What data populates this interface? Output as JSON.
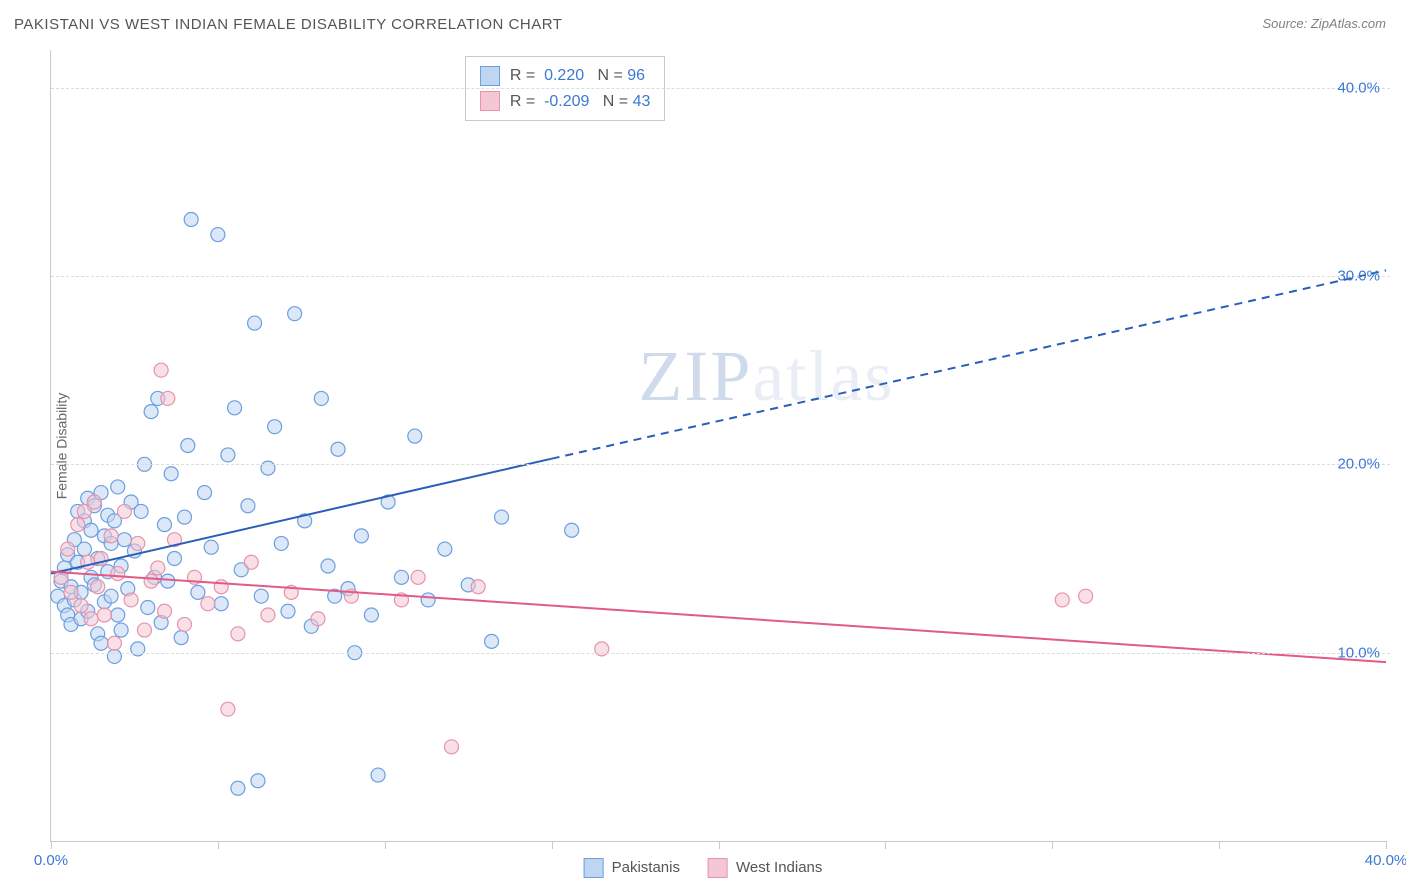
{
  "title": "PAKISTANI VS WEST INDIAN FEMALE DISABILITY CORRELATION CHART",
  "source_prefix": "Source: ",
  "source_link": "ZipAtlas.com",
  "ylabel": "Female Disability",
  "watermark_a": "ZIP",
  "watermark_b": "atlas",
  "chart": {
    "type": "scatter-with-regression",
    "xlim": [
      0,
      40
    ],
    "ylim": [
      0,
      42
    ],
    "background_color": "#ffffff",
    "grid_color": "#dcdcdc",
    "axis_color": "#c9c9c9",
    "tick_color": "#3a78d6",
    "label_color": "#666666",
    "x_ticks": [
      0,
      5,
      10,
      15,
      20,
      25,
      30,
      35,
      40
    ],
    "x_tick_labels": {
      "0": "0.0%",
      "40": "40.0%"
    },
    "y_gridlines": [
      10,
      20,
      30,
      40
    ],
    "y_tick_labels": {
      "10": "10.0%",
      "20": "20.0%",
      "30": "30.0%",
      "40": "40.0%"
    },
    "marker_radius": 7,
    "marker_stroke_width": 1.2,
    "series": [
      {
        "name": "Pakistanis",
        "fill": "#bfd6f2",
        "stroke": "#6b9fe0",
        "fill_opacity": 0.55,
        "regression": {
          "color": "#2a5fb8",
          "width": 2,
          "x1": 0,
          "y1": 14.2,
          "x2": 15,
          "y2": 20.3,
          "dash_x2": 40,
          "dash_y2": 30.3
        },
        "points": [
          [
            0.2,
            13.0
          ],
          [
            0.3,
            13.8
          ],
          [
            0.4,
            12.5
          ],
          [
            0.4,
            14.5
          ],
          [
            0.5,
            15.2
          ],
          [
            0.5,
            12.0
          ],
          [
            0.6,
            11.5
          ],
          [
            0.6,
            13.5
          ],
          [
            0.7,
            16.0
          ],
          [
            0.7,
            12.8
          ],
          [
            0.8,
            14.8
          ],
          [
            0.8,
            17.5
          ],
          [
            0.9,
            13.2
          ],
          [
            0.9,
            11.8
          ],
          [
            1.0,
            15.5
          ],
          [
            1.0,
            17.0
          ],
          [
            1.1,
            18.2
          ],
          [
            1.1,
            12.2
          ],
          [
            1.2,
            14.0
          ],
          [
            1.2,
            16.5
          ],
          [
            1.3,
            13.6
          ],
          [
            1.3,
            17.8
          ],
          [
            1.4,
            11.0
          ],
          [
            1.4,
            15.0
          ],
          [
            1.5,
            10.5
          ],
          [
            1.5,
            18.5
          ],
          [
            1.6,
            12.7
          ],
          [
            1.6,
            16.2
          ],
          [
            1.7,
            14.3
          ],
          [
            1.7,
            17.3
          ],
          [
            1.8,
            13.0
          ],
          [
            1.8,
            15.8
          ],
          [
            1.9,
            9.8
          ],
          [
            1.9,
            17.0
          ],
          [
            2.0,
            12.0
          ],
          [
            2.0,
            18.8
          ],
          [
            2.1,
            14.6
          ],
          [
            2.1,
            11.2
          ],
          [
            2.2,
            16.0
          ],
          [
            2.3,
            13.4
          ],
          [
            2.4,
            18.0
          ],
          [
            2.5,
            15.4
          ],
          [
            2.6,
            10.2
          ],
          [
            2.7,
            17.5
          ],
          [
            2.8,
            20.0
          ],
          [
            2.9,
            12.4
          ],
          [
            3.0,
            22.8
          ],
          [
            3.1,
            14.0
          ],
          [
            3.2,
            23.5
          ],
          [
            3.3,
            11.6
          ],
          [
            3.4,
            16.8
          ],
          [
            3.5,
            13.8
          ],
          [
            3.6,
            19.5
          ],
          [
            3.7,
            15.0
          ],
          [
            3.9,
            10.8
          ],
          [
            4.0,
            17.2
          ],
          [
            4.1,
            21.0
          ],
          [
            4.2,
            33.0
          ],
          [
            4.4,
            13.2
          ],
          [
            4.6,
            18.5
          ],
          [
            4.8,
            15.6
          ],
          [
            5.0,
            32.2
          ],
          [
            5.1,
            12.6
          ],
          [
            5.3,
            20.5
          ],
          [
            5.5,
            23.0
          ],
          [
            5.6,
            2.8
          ],
          [
            5.7,
            14.4
          ],
          [
            5.9,
            17.8
          ],
          [
            6.1,
            27.5
          ],
          [
            6.2,
            3.2
          ],
          [
            6.3,
            13.0
          ],
          [
            6.5,
            19.8
          ],
          [
            6.7,
            22.0
          ],
          [
            6.9,
            15.8
          ],
          [
            7.1,
            12.2
          ],
          [
            7.3,
            28.0
          ],
          [
            7.6,
            17.0
          ],
          [
            7.8,
            11.4
          ],
          [
            8.1,
            23.5
          ],
          [
            8.3,
            14.6
          ],
          [
            8.6,
            20.8
          ],
          [
            8.9,
            13.4
          ],
          [
            9.1,
            10.0
          ],
          [
            9.3,
            16.2
          ],
          [
            9.6,
            12.0
          ],
          [
            9.8,
            3.5
          ],
          [
            10.1,
            18.0
          ],
          [
            10.5,
            14.0
          ],
          [
            10.9,
            21.5
          ],
          [
            11.3,
            12.8
          ],
          [
            11.8,
            15.5
          ],
          [
            12.5,
            13.6
          ],
          [
            13.2,
            10.6
          ],
          [
            13.5,
            17.2
          ],
          [
            15.6,
            16.5
          ],
          [
            8.5,
            13.0
          ]
        ]
      },
      {
        "name": "West Indians",
        "fill": "#f4c7d4",
        "stroke": "#e793ab",
        "fill_opacity": 0.55,
        "regression": {
          "color": "#e25a85",
          "width": 2,
          "x1": 0,
          "y1": 14.3,
          "x2": 40,
          "y2": 9.5
        },
        "points": [
          [
            0.3,
            14.0
          ],
          [
            0.5,
            15.5
          ],
          [
            0.6,
            13.2
          ],
          [
            0.8,
            16.8
          ],
          [
            0.9,
            12.5
          ],
          [
            1.0,
            17.5
          ],
          [
            1.1,
            14.8
          ],
          [
            1.2,
            11.8
          ],
          [
            1.3,
            18.0
          ],
          [
            1.4,
            13.5
          ],
          [
            1.5,
            15.0
          ],
          [
            1.6,
            12.0
          ],
          [
            1.8,
            16.2
          ],
          [
            1.9,
            10.5
          ],
          [
            2.0,
            14.2
          ],
          [
            2.2,
            17.5
          ],
          [
            2.4,
            12.8
          ],
          [
            2.6,
            15.8
          ],
          [
            2.8,
            11.2
          ],
          [
            3.0,
            13.8
          ],
          [
            3.2,
            14.5
          ],
          [
            3.3,
            25.0
          ],
          [
            3.4,
            12.2
          ],
          [
            3.5,
            23.5
          ],
          [
            3.7,
            16.0
          ],
          [
            4.0,
            11.5
          ],
          [
            4.3,
            14.0
          ],
          [
            4.7,
            12.6
          ],
          [
            5.1,
            13.5
          ],
          [
            5.3,
            7.0
          ],
          [
            5.6,
            11.0
          ],
          [
            6.0,
            14.8
          ],
          [
            6.5,
            12.0
          ],
          [
            7.2,
            13.2
          ],
          [
            8.0,
            11.8
          ],
          [
            9.0,
            13.0
          ],
          [
            10.5,
            12.8
          ],
          [
            11.0,
            14.0
          ],
          [
            12.0,
            5.0
          ],
          [
            12.8,
            13.5
          ],
          [
            16.5,
            10.2
          ],
          [
            30.3,
            12.8
          ],
          [
            31.0,
            13.0
          ]
        ]
      }
    ]
  },
  "stats": {
    "r_label": "R =",
    "n_label": "N =",
    "rows": [
      {
        "swatch_fill": "#bfd6f2",
        "swatch_stroke": "#6b9fe0",
        "r": "0.220",
        "n": "96"
      },
      {
        "swatch_fill": "#f4c7d4",
        "swatch_stroke": "#e793ab",
        "r": "-0.209",
        "n": "43"
      }
    ]
  },
  "legend": {
    "items": [
      {
        "swatch_fill": "#bfd6f2",
        "swatch_stroke": "#6b9fe0",
        "label": "Pakistanis"
      },
      {
        "swatch_fill": "#f4c7d4",
        "swatch_stroke": "#e793ab",
        "label": "West Indians"
      }
    ]
  }
}
